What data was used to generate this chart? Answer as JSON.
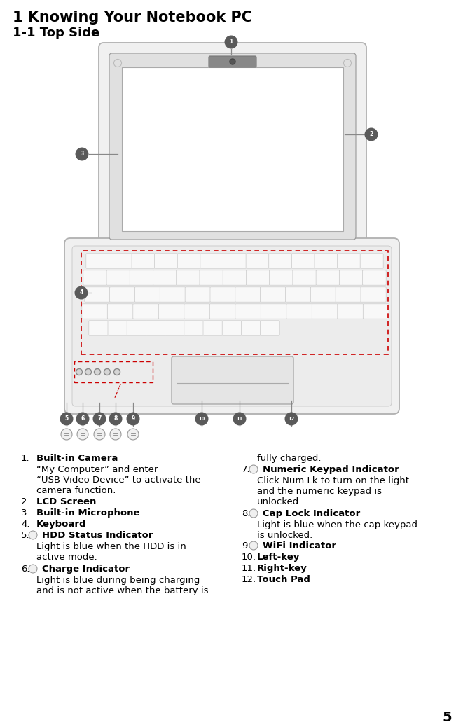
{
  "title1": "1 Knowing Your Notebook PC",
  "title2": "1-1 Top Side",
  "page_num": "5",
  "bg_color": "#ffffff",
  "text_color": "#000000",
  "label_bg_color": "#5a5a5a",
  "label_text_color": "#ffffff",
  "dashed_color": "#cc0000",
  "open_quote": "“",
  "close_quote": "”"
}
